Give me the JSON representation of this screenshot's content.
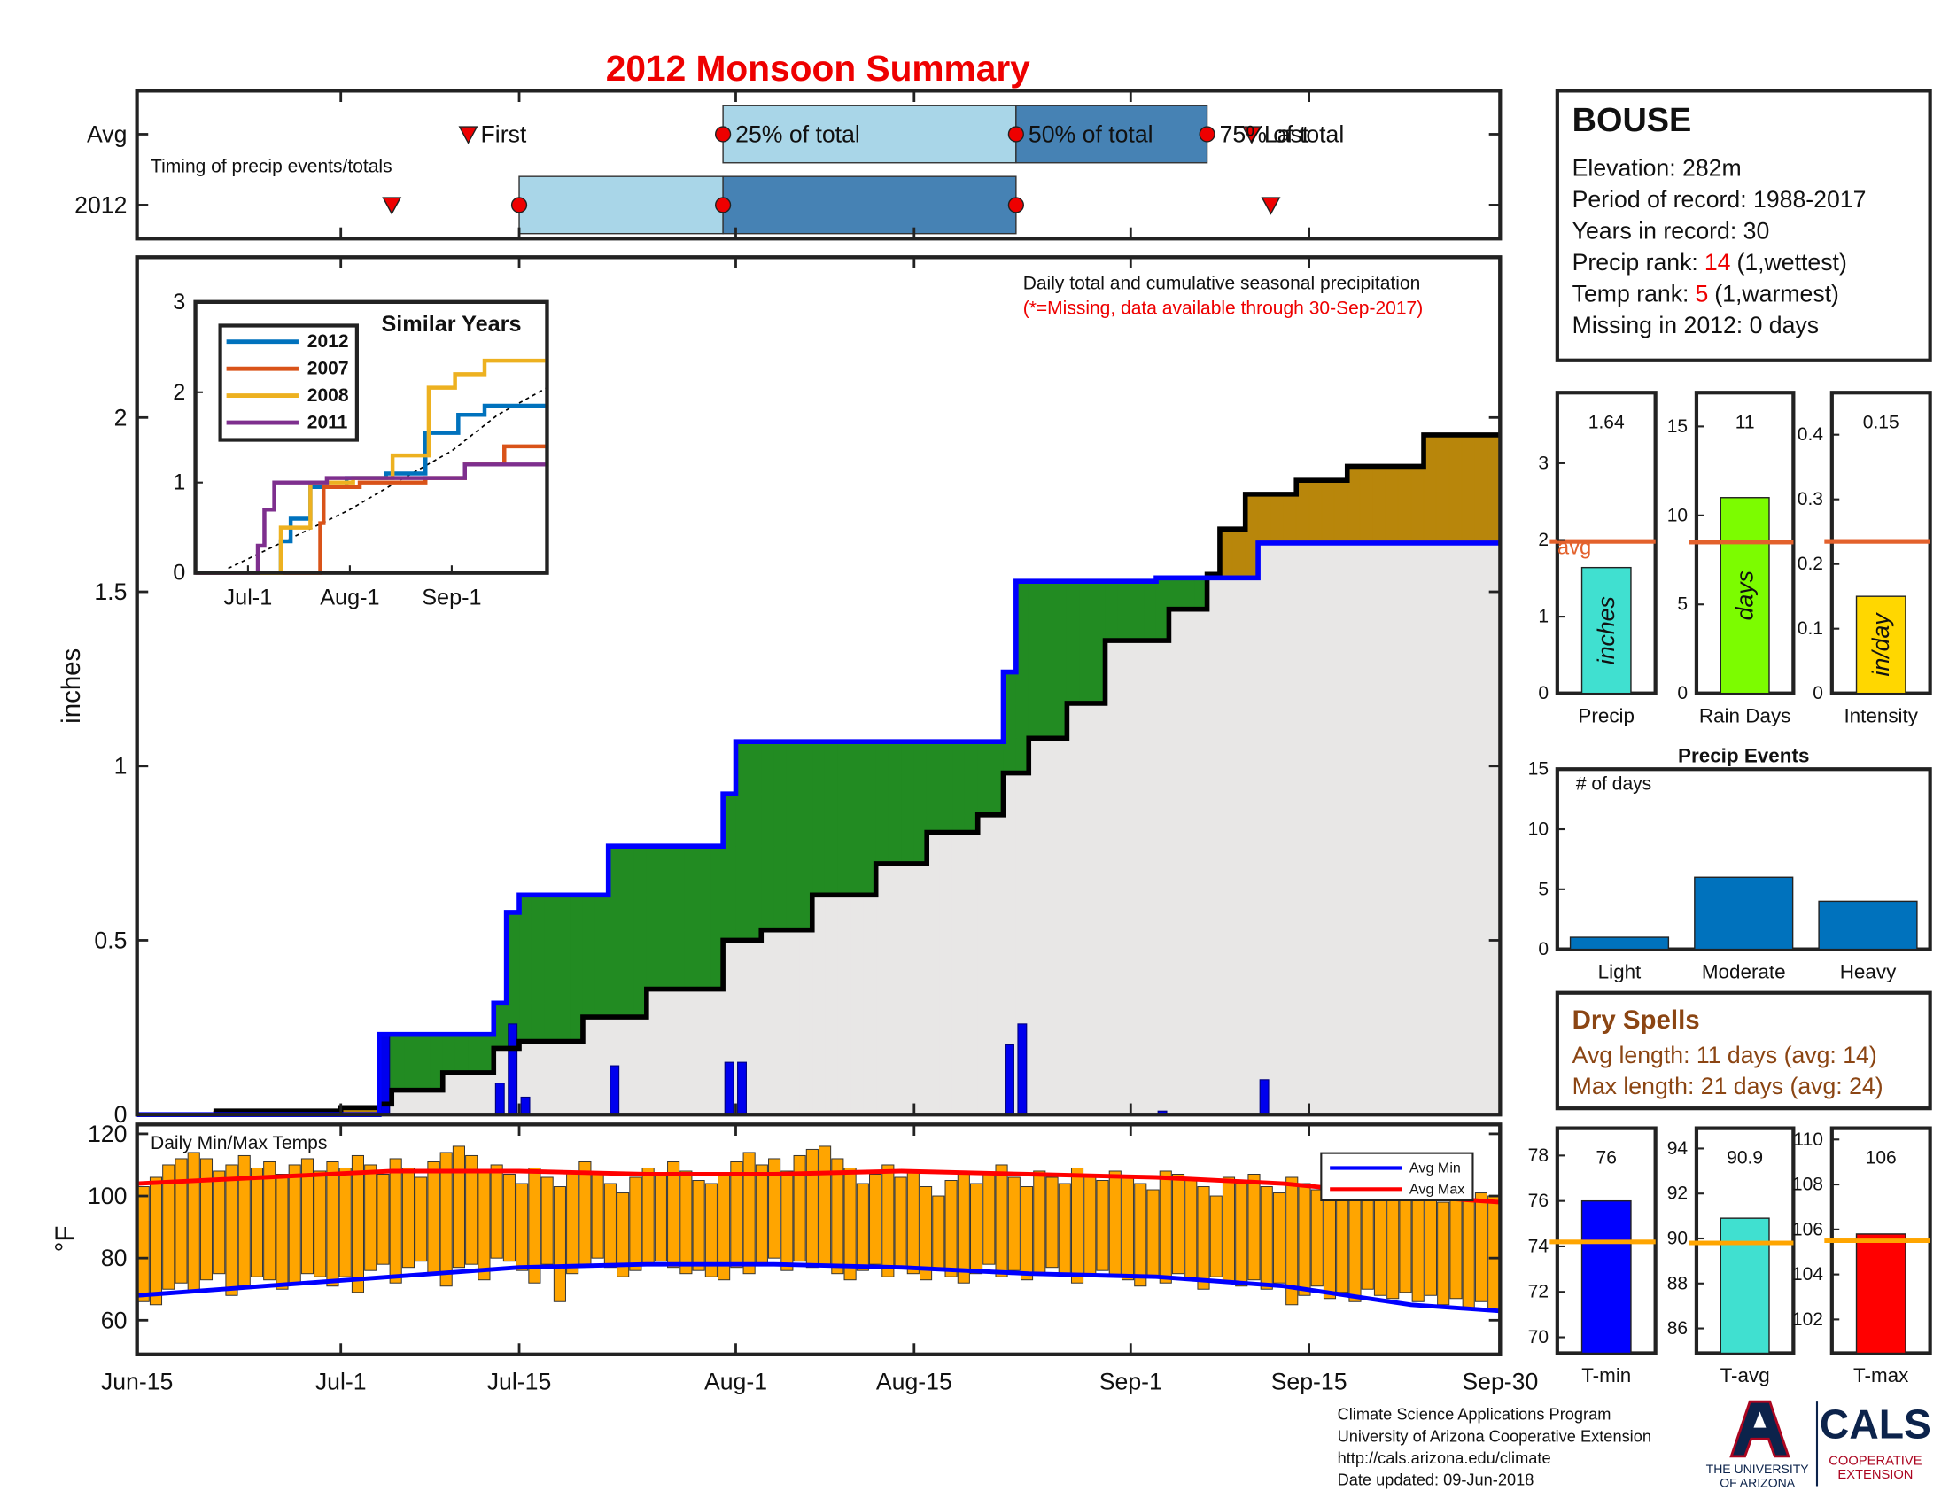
{
  "chart_data": [
    {
      "type": "timing",
      "title": "2012 Monsoon Summary",
      "note": "Timing of precip events/totals",
      "labels": [
        "First",
        "25% of total",
        "50% of total",
        "75% of total",
        "Last"
      ],
      "rows": [
        {
          "name": "Avg",
          "values": [
            26,
            46,
            69,
            84,
            87.5
          ]
        },
        {
          "name": "2012",
          "values": [
            20,
            30,
            46,
            69,
            89
          ]
        }
      ],
      "xlim": [
        0,
        107
      ],
      "colors": {
        "light": "#a9d6e8",
        "dark": "#4682b4",
        "marker": "#ee0000"
      }
    },
    {
      "type": "precip",
      "annotation": "Daily total and cumulative seasonal precipitation",
      "note": "(*=Missing, data available through 30-Sep-2017)",
      "ylabel": "inches",
      "xlim": [
        0,
        107
      ],
      "ylim": [
        0,
        2.46
      ],
      "yticks": [
        0,
        0.5,
        1,
        1.5,
        2
      ],
      "daily": {
        "name": "2012",
        "color": "#0000ee",
        "line_color": "#0000ff",
        "x": [
          19,
          28,
          29,
          30,
          37,
          46,
          47,
          68,
          69,
          80,
          88
        ],
        "values": [
          0.23,
          0.09,
          0.26,
          0.05,
          0.14,
          0.15,
          0.15,
          0.2,
          0.26,
          0.01,
          0.1
        ]
      },
      "average": {
        "color": "#000000",
        "x": [
          6,
          16,
          19,
          20,
          24,
          28,
          30,
          35,
          40,
          46,
          49,
          53,
          58,
          62,
          66,
          68,
          70,
          73,
          76,
          81,
          84,
          85,
          87,
          91,
          95,
          101,
          107
        ],
        "values": [
          0.01,
          0.02,
          0.03,
          0.07,
          0.12,
          0.19,
          0.21,
          0.28,
          0.36,
          0.5,
          0.53,
          0.63,
          0.72,
          0.81,
          0.86,
          0.98,
          1.08,
          1.18,
          1.36,
          1.45,
          1.55,
          1.68,
          1.78,
          1.82,
          1.86,
          1.95,
          1.95
        ]
      },
      "fill_colors": {
        "below": "#e8e7e6",
        "wetter": "#228b22",
        "drier": "#b8860b"
      }
    },
    {
      "type": "line",
      "title": "Similar Years",
      "xlim": [
        0,
        107
      ],
      "ylim": [
        0,
        3
      ],
      "yticks": [
        0,
        1,
        2,
        3
      ],
      "xticks": [
        {
          "value": 16,
          "label": "Jul-1"
        },
        {
          "value": 47,
          "label": "Aug-1"
        },
        {
          "value": 78,
          "label": "Sep-1"
        }
      ],
      "series": [
        {
          "name": "2012",
          "color": "#0072bd",
          "x": [
            0,
            26,
            29,
            35,
            46,
            58,
            70,
            80,
            88
          ],
          "values": [
            0,
            0.35,
            0.6,
            0.95,
            1.05,
            1.1,
            1.55,
            1.75,
            1.85
          ]
        },
        {
          "name": "2007",
          "color": "#d95319",
          "x": [
            0,
            38,
            39,
            50,
            70,
            82,
            94
          ],
          "values": [
            0,
            0.55,
            0.95,
            1.0,
            1.05,
            1.2,
            1.4
          ]
        },
        {
          "name": "2008",
          "color": "#edb120",
          "x": [
            0,
            26,
            35,
            48,
            60,
            71,
            79,
            88
          ],
          "values": [
            0,
            0.5,
            1.0,
            1.05,
            1.3,
            2.05,
            2.2,
            2.35
          ]
        },
        {
          "name": "2011",
          "color": "#7e2f8e",
          "x": [
            0,
            19,
            21,
            24,
            40,
            82
          ],
          "values": [
            0,
            0.3,
            0.7,
            1.0,
            1.05,
            1.2
          ]
        }
      ],
      "average": {
        "color": "#000000",
        "x": [
          10,
          30,
          47,
          61,
          78,
          92,
          107
        ],
        "values": [
          0.05,
          0.4,
          0.7,
          1.0,
          1.35,
          1.75,
          2.05
        ]
      }
    },
    {
      "type": "temps",
      "title": "Daily Min/Max Temps",
      "ylabel": "°F",
      "xlim": [
        0,
        107
      ],
      "ylim": [
        49,
        123
      ],
      "yticks": [
        60,
        80,
        100,
        120
      ],
      "xticks": [
        {
          "value": 0,
          "label": "Jun-15"
        },
        {
          "value": 16,
          "label": "Jul-1"
        },
        {
          "value": 30,
          "label": "Jul-15"
        },
        {
          "value": 47,
          "label": "Aug-1"
        },
        {
          "value": 61,
          "label": "Aug-15"
        },
        {
          "value": 78,
          "label": "Sep-1"
        },
        {
          "value": 92,
          "label": "Sep-15"
        },
        {
          "value": 107,
          "label": "Sep-30"
        }
      ],
      "bar_color": "#ffa500",
      "max": [
        103,
        106,
        110,
        112,
        114,
        112,
        108,
        110,
        113,
        109,
        111,
        107,
        110,
        112,
        108,
        111,
        109,
        113,
        110,
        107,
        112,
        109,
        106,
        111,
        114,
        116,
        113,
        108,
        110,
        107,
        104,
        109,
        106,
        103,
        108,
        111,
        107,
        104,
        101,
        106,
        109,
        107,
        111,
        108,
        105,
        104,
        107,
        111,
        114,
        110,
        112,
        108,
        113,
        115,
        116,
        112,
        109,
        104,
        107,
        110,
        106,
        108,
        103,
        100,
        105,
        108,
        104,
        107,
        110,
        106,
        103,
        108,
        106,
        104,
        109,
        107,
        105,
        108,
        106,
        104,
        102,
        108,
        107,
        105,
        103,
        100,
        106,
        104,
        107,
        103,
        101,
        106,
        104,
        102,
        100,
        105,
        103,
        101,
        99,
        103,
        101,
        104,
        100,
        98,
        102,
        99,
        101,
        100
      ],
      "min": [
        66,
        65,
        70,
        72,
        69,
        73,
        75,
        68,
        71,
        74,
        73,
        70,
        72,
        75,
        74,
        71,
        74,
        69,
        76,
        78,
        72,
        77,
        79,
        75,
        71,
        77,
        78,
        73,
        80,
        79,
        76,
        72,
        78,
        66,
        75,
        78,
        80,
        77,
        74,
        76,
        78,
        79,
        77,
        75,
        76,
        74,
        73,
        77,
        75,
        78,
        80,
        76,
        79,
        77,
        78,
        75,
        73,
        76,
        78,
        74,
        77,
        75,
        73,
        76,
        74,
        72,
        75,
        78,
        74,
        76,
        73,
        75,
        77,
        74,
        72,
        75,
        76,
        74,
        73,
        71,
        74,
        72,
        75,
        73,
        70,
        74,
        72,
        71,
        73,
        70,
        72,
        65,
        68,
        71,
        67,
        69,
        66,
        70,
        68,
        67,
        69,
        66,
        68,
        65,
        67,
        64,
        66,
        63
      ],
      "series": [
        {
          "name": "Avg Min",
          "color": "#0000ff",
          "x": [
            0,
            10,
            20,
            30,
            40,
            50,
            60,
            70,
            80,
            90,
            100,
            107
          ],
          "values": [
            68,
            71,
            74,
            77,
            78,
            78,
            77,
            75,
            74,
            71,
            65,
            63
          ]
        },
        {
          "name": "Avg Max",
          "color": "#ff0000",
          "x": [
            0,
            10,
            20,
            30,
            40,
            50,
            60,
            70,
            80,
            90,
            100,
            107
          ],
          "values": [
            104,
            106,
            108,
            108,
            107,
            107,
            108,
            107,
            106,
            104,
            100,
            98
          ]
        }
      ]
    },
    {
      "type": "bar",
      "categories": [
        "Precip"
      ],
      "values": [
        1.64
      ],
      "avg": 1.98,
      "avg_label": "avg",
      "unit": "inches",
      "ylim": [
        0,
        3.92
      ],
      "yticks": [
        0,
        1,
        2,
        3
      ],
      "color": "#40e0d0",
      "avg_color": "#e3612c"
    },
    {
      "type": "bar",
      "categories": [
        "Rain Days"
      ],
      "values": [
        11
      ],
      "avg": 8.5,
      "unit": "days",
      "ylim": [
        0,
        16.9
      ],
      "yticks": [
        0,
        5,
        10,
        15
      ],
      "color": "#7cfc00",
      "avg_color": "#e3612c"
    },
    {
      "type": "bar",
      "categories": [
        "Intensity"
      ],
      "values": [
        0.15
      ],
      "avg": 0.235,
      "unit": "in/day",
      "ylim": [
        0,
        0.465
      ],
      "yticks": [
        0,
        0.1,
        0.2,
        0.3,
        0.4
      ],
      "color": "#ffd700",
      "avg_color": "#e3612c"
    },
    {
      "type": "bar",
      "title": "Precip Events",
      "ylabel": "# of days",
      "categories": [
        "Light",
        "Moderate",
        "Heavy"
      ],
      "values": [
        1,
        6,
        4
      ],
      "ylim": [
        0,
        15
      ],
      "yticks": [
        0,
        5,
        10,
        15
      ],
      "color": "#0072bd"
    },
    {
      "type": "bar",
      "categories": [
        "T-min"
      ],
      "values": [
        76
      ],
      "avg": 74.2,
      "ylim": [
        69.3,
        79.2
      ],
      "yticks": [
        70,
        72,
        74,
        76,
        78
      ],
      "color": "#0000ff",
      "avg_color": "#ffa500"
    },
    {
      "type": "bar",
      "categories": [
        "T-avg"
      ],
      "values": [
        90.9
      ],
      "avg": 89.8,
      "ylim": [
        84.9,
        94.9
      ],
      "yticks": [
        86,
        88,
        90,
        92,
        94
      ],
      "color": "#40e0d0",
      "avg_color": "#ffa500"
    },
    {
      "type": "bar",
      "categories": [
        "T-max"
      ],
      "values": [
        105.8
      ],
      "value_labels": [
        "106"
      ],
      "avg": 105.5,
      "ylim": [
        100.5,
        110.5
      ],
      "yticks": [
        102,
        104,
        106,
        108,
        110
      ],
      "color": "#ff0000",
      "avg_color": "#ffa500"
    }
  ],
  "station": {
    "name": "BOUSE",
    "lines": [
      "Elevation: 282m",
      "Period of record: 1988-2017",
      "Years in record: 30"
    ],
    "ranks": [
      {
        "label": "Precip rank:",
        "value": 14,
        "note": "(1,wettest)"
      },
      {
        "label": "Temp rank:",
        "value": 5,
        "note": "(1,warmest)"
      }
    ],
    "missing": "Missing in 2012: 0 days"
  },
  "dry_spells": {
    "title": "Dry Spells",
    "lines": [
      "Avg length: 11 days (avg: 14)",
      "Max length: 21 days (avg: 24)"
    ]
  },
  "footer": {
    "lines": [
      "Climate Science Applications Program",
      "University of Arizona Cooperative Extension",
      "http://cals.arizona.edu/climate",
      "Date updated: 09-Jun-2018"
    ],
    "logo": {
      "university": [
        "THE UNIVERSITY",
        "OF ARIZONA"
      ],
      "cals": "CALS",
      "extension": [
        "COOPERATIVE",
        "EXTENSION"
      ]
    }
  }
}
